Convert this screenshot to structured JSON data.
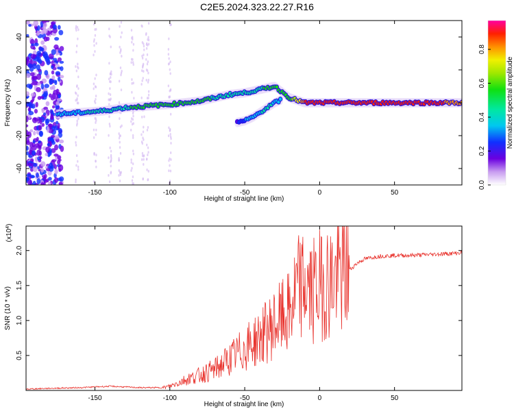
{
  "title": "C2E5.2024.323.22.27.R16",
  "chart_data": [
    {
      "type": "heatmap",
      "xlabel": "Height of straight line (km)",
      "ylabel": "Frequency (Hz)",
      "xlim": [
        -196,
        95
      ],
      "ylim": [
        -50,
        50
      ],
      "xticks": [
        -150,
        -100,
        -50,
        0,
        50
      ],
      "yticks": [
        -40,
        -20,
        0,
        20,
        40
      ],
      "grid": false,
      "colorbar": {
        "label": "Normalized spectral amplitude",
        "ticks": [
          0.0,
          0.2,
          0.4,
          0.6,
          0.8
        ],
        "range": [
          0,
          0.97
        ]
      },
      "features": [
        {
          "name": "main trace",
          "x": [
            -175,
            -160,
            -145,
            -130,
            -115,
            -100,
            -90,
            -80,
            -70,
            -60,
            -50,
            -40,
            -30,
            -20,
            -10,
            0,
            20,
            40,
            60,
            80,
            95
          ],
          "y": [
            -7,
            -6,
            -5,
            -3,
            -2,
            -1,
            0,
            1,
            3,
            5,
            6,
            8,
            10,
            3,
            0,
            0,
            0,
            0,
            0,
            0,
            0
          ],
          "amplitude": [
            0.3,
            0.35,
            0.4,
            0.45,
            0.5,
            0.55,
            0.5,
            0.5,
            0.45,
            0.4,
            0.4,
            0.45,
            0.5,
            0.55,
            0.85,
            0.9,
            0.85,
            0.85,
            0.85,
            0.85,
            0.8
          ]
        },
        {
          "name": "secondary trace",
          "x": [
            -55,
            -50,
            -45,
            -40,
            -35,
            -30,
            -25
          ],
          "y": [
            -12,
            -11,
            -9,
            -6,
            -3,
            0,
            2
          ],
          "amplitude": [
            0.15,
            0.25,
            0.3,
            0.35,
            0.4,
            0.35,
            0.3
          ]
        }
      ]
    },
    {
      "type": "line",
      "xlabel": "Height of straight line (km)",
      "ylabel": "SNR (10 * v/v)",
      "yunit_label": "(x10",
      "yunit_exp": "4",
      "yunit_close": ")",
      "xlim": [
        -196,
        95
      ],
      "ylim": [
        0,
        2.35
      ],
      "xticks": [
        -150,
        -100,
        -50,
        0,
        50
      ],
      "yticks": [
        0.5,
        1.0,
        1.5,
        2.0
      ],
      "ytick_labels": [
        "0.5",
        "1.0",
        "1.5",
        "2.0"
      ],
      "color": "#e8302a",
      "series": [
        {
          "x": [
            -196,
            -180,
            -160,
            -140,
            -120,
            -105,
            -100,
            -90,
            -80,
            -70,
            -60,
            -50,
            -40,
            -30,
            -20,
            -15,
            -10,
            -5,
            0,
            5,
            10,
            15,
            20,
            25,
            30,
            40,
            50,
            60,
            70,
            80,
            90,
            95
          ],
          "y": [
            0.02,
            0.03,
            0.04,
            0.06,
            0.04,
            0.04,
            0.06,
            0.15,
            0.22,
            0.3,
            0.45,
            0.6,
            0.75,
            0.95,
            1.1,
            1.45,
            1.5,
            1.4,
            1.5,
            1.55,
            1.6,
            1.65,
            1.72,
            1.82,
            1.88,
            1.92,
            1.93,
            1.93,
            1.94,
            1.95,
            1.96,
            1.97
          ]
        }
      ]
    }
  ]
}
